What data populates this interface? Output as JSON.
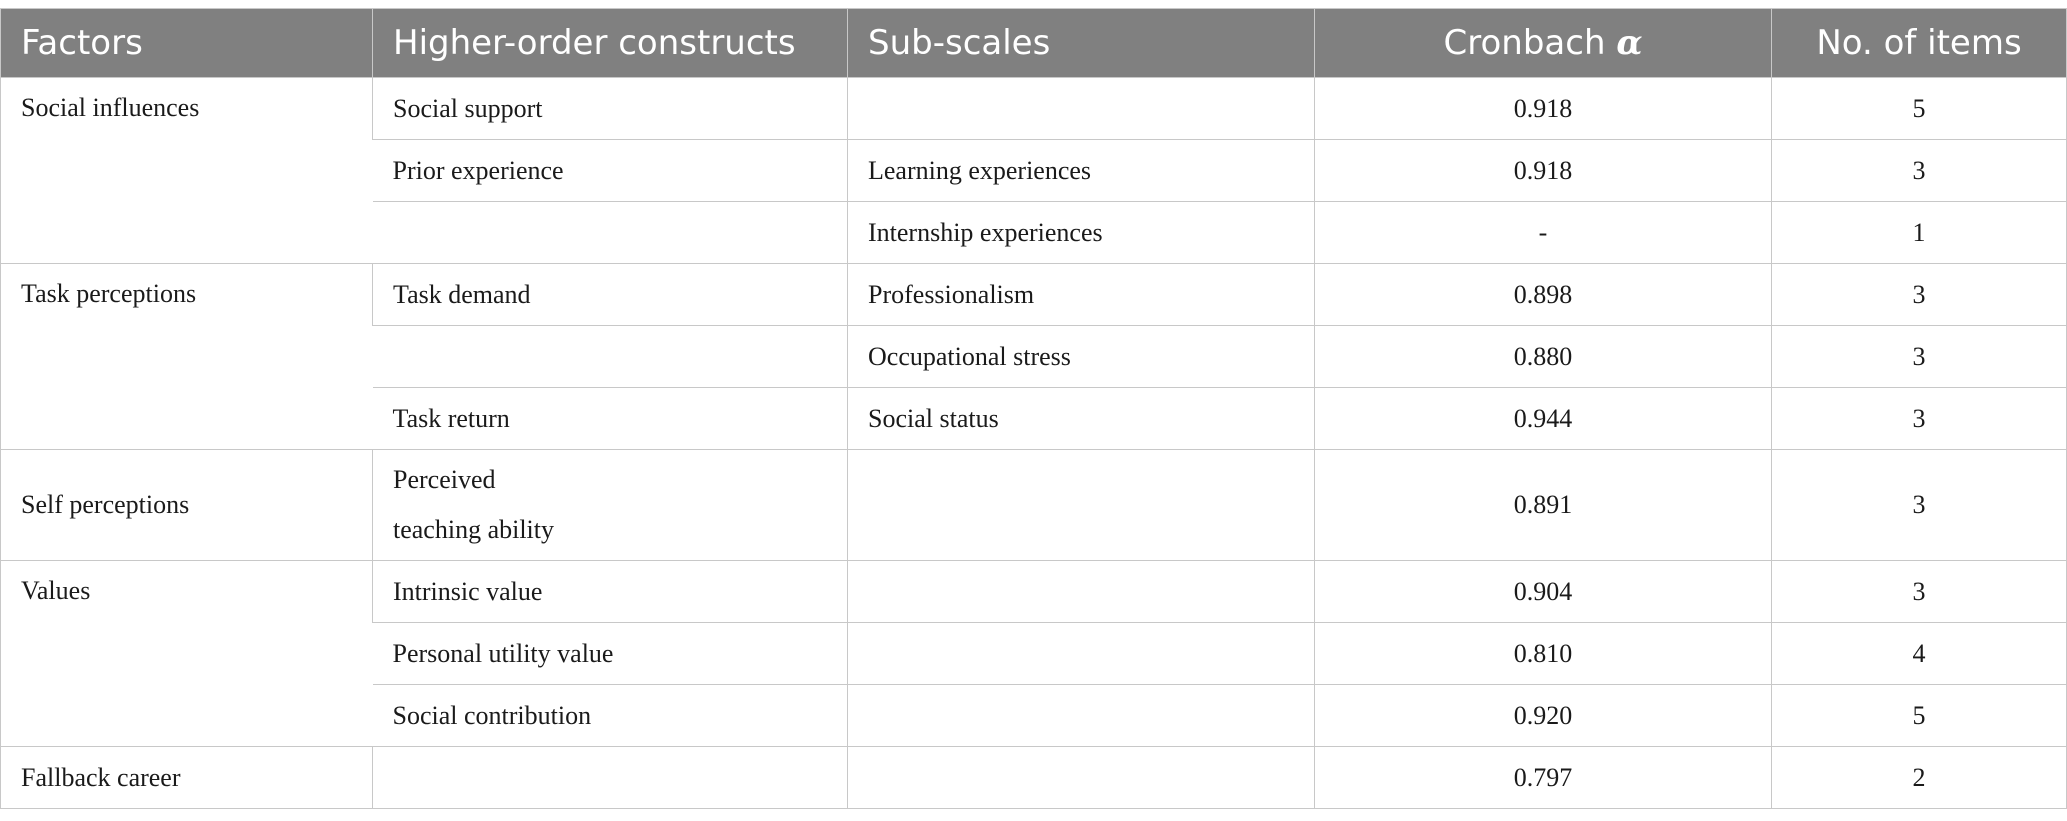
{
  "table": {
    "headers": {
      "factors": "Factors",
      "higher_order": "Higher-order constructs",
      "sub_scales": "Sub-scales",
      "cronbach": "Cronbach",
      "cronbach_symbol": "α",
      "items": "No. of items"
    },
    "rows": [
      {
        "factor": "Social influences",
        "construct": "Social support",
        "subscale": "",
        "alpha": "0.918",
        "items": "5"
      },
      {
        "factor": "",
        "construct": "Prior experience",
        "subscale": "Learning experiences",
        "alpha": "0.918",
        "items": "3"
      },
      {
        "factor": "",
        "construct": "",
        "subscale": "Internship experiences",
        "alpha": "-",
        "items": "1"
      },
      {
        "factor": "Task perceptions",
        "construct": "Task demand",
        "subscale": "Professionalism",
        "alpha": "0.898",
        "items": "3"
      },
      {
        "factor": "",
        "construct": "",
        "subscale": "Occupational stress",
        "alpha": "0.880",
        "items": "3"
      },
      {
        "factor": "",
        "construct": "Task return",
        "subscale": "Social status",
        "alpha": "0.944",
        "items": "3"
      },
      {
        "factor": "Self perceptions",
        "construct_line1": "Perceived",
        "construct_line2": "teaching ability",
        "subscale": "",
        "alpha": "0.891",
        "items": "3"
      },
      {
        "factor": "Values",
        "construct": "Intrinsic value",
        "subscale": "",
        "alpha": "0.904",
        "items": "3"
      },
      {
        "factor": "",
        "construct": "Personal utility value",
        "subscale": "",
        "alpha": "0.810",
        "items": "4"
      },
      {
        "factor": "",
        "construct": "Social contribution",
        "subscale": "",
        "alpha": "0.920",
        "items": "5"
      },
      {
        "factor": "Fallback career",
        "construct": "",
        "subscale": "",
        "alpha": "0.797",
        "items": "2"
      }
    ]
  }
}
